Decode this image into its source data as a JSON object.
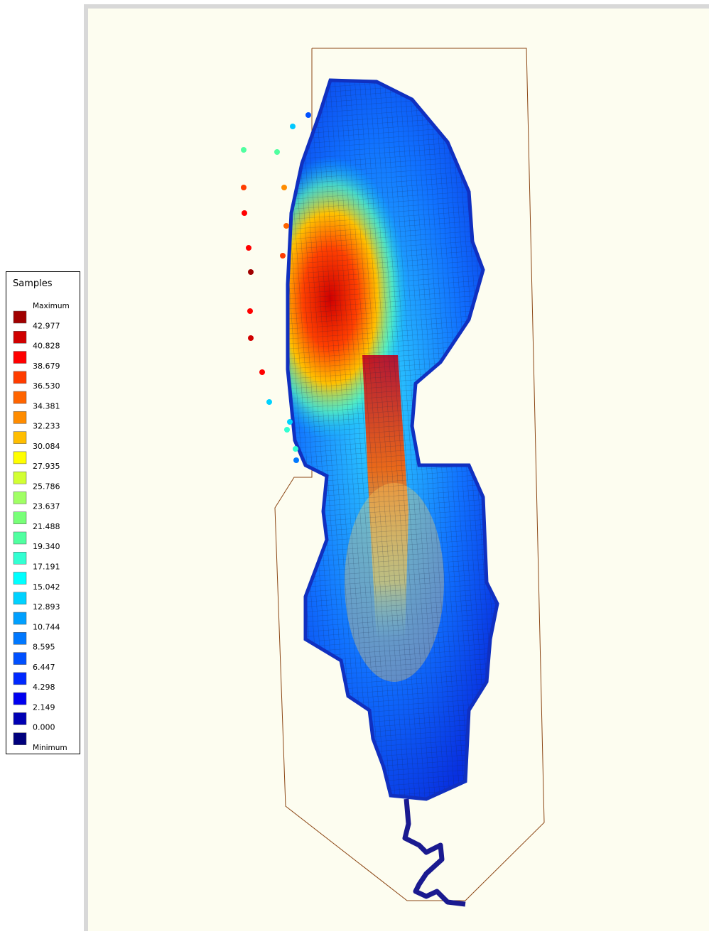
{
  "legend": {
    "title": "Samples",
    "labels": [
      "Maximum",
      "42.977",
      "40.828",
      "38.679",
      "36.530",
      "34.381",
      "32.233",
      "30.084",
      "27.935",
      "25.786",
      "23.637",
      "21.488",
      "19.340",
      "17.191",
      "15.042",
      "12.893",
      "10.744",
      "8.595",
      "6.447",
      "4.298",
      "2.149",
      "0.000",
      "Minimum"
    ],
    "colors": [
      "#a00000",
      "#d00000",
      "#ff0000",
      "#ff3c00",
      "#ff6400",
      "#ff8c00",
      "#ffbe00",
      "#ffff00",
      "#d2ff32",
      "#a0ff64",
      "#78ff78",
      "#50ffa0",
      "#32ffd2",
      "#00ffff",
      "#00d2ff",
      "#00a0ff",
      "#0078ff",
      "#0050ff",
      "#0028ff",
      "#0000f0",
      "#0000b4",
      "#00007d"
    ]
  }
}
